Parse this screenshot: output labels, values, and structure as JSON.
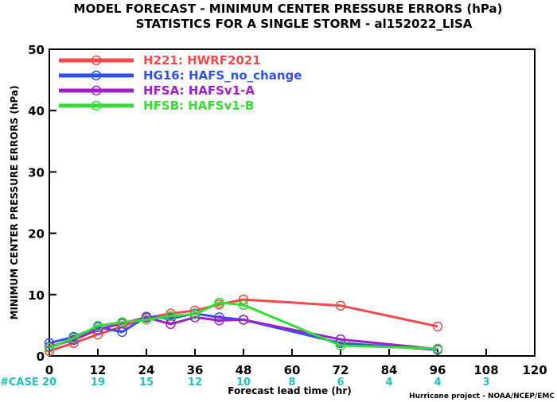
{
  "chart_data": {
    "type": "line",
    "title": "MODEL FORECAST - MINIMUM CENTER PRESSURE ERRORS (hPa)",
    "subtitle": "STATISTICS FOR A SINGLE STORM - al152022_LISA",
    "xlabel": "Forecast lead time (hr)",
    "ylabel": "MINIMUM CENTER PRESSURE ERRORS (hPa)",
    "xlim": [
      0,
      120
    ],
    "ylim": [
      0,
      50
    ],
    "xticks": [
      0,
      12,
      24,
      36,
      48,
      60,
      72,
      84,
      96,
      108,
      120
    ],
    "yticks": [
      0,
      10,
      20,
      30,
      40,
      50
    ],
    "grid": false,
    "legend_position": "top-left",
    "series": [
      {
        "name": "H221: HWRF2021",
        "color": "#f04a4a",
        "x": [
          0,
          6,
          12,
          18,
          24,
          30,
          36,
          42,
          48,
          72,
          96
        ],
        "y": [
          0.8,
          2.1,
          3.5,
          4.8,
          6.2,
          6.9,
          7.4,
          8.4,
          9.2,
          8.2,
          4.8
        ]
      },
      {
        "name": "HG16: HAFS_no_change",
        "color": "#3050f0",
        "x": [
          0,
          6,
          12,
          18,
          24,
          30,
          36,
          42,
          48,
          72,
          96
        ],
        "y": [
          2.1,
          3.1,
          4.7,
          3.9,
          6.4,
          6.1,
          6.9,
          6.3,
          5.9,
          2.1,
          1.0
        ]
      },
      {
        "name": "HFSA: HAFSv1-A",
        "color": "#a020c8",
        "x": [
          0,
          6,
          12,
          18,
          24,
          30,
          36,
          42,
          48,
          72,
          96
        ],
        "y": [
          1.5,
          2.6,
          4.3,
          5.3,
          6.3,
          5.2,
          6.3,
          5.8,
          5.9,
          2.7,
          1.1
        ]
      },
      {
        "name": "HFSB: HAFSv1-B",
        "color": "#30e030",
        "x": [
          0,
          6,
          12,
          18,
          24,
          30,
          36,
          42,
          48,
          72,
          96
        ],
        "y": [
          1.3,
          2.9,
          4.9,
          5.5,
          5.9,
          6.5,
          6.8,
          8.7,
          8.3,
          1.7,
          1.2
        ]
      }
    ],
    "case_label": "#CASE",
    "case_color": "#20c0c0",
    "case_counts": [
      {
        "x": 0,
        "n": "20"
      },
      {
        "x": 12,
        "n": "19"
      },
      {
        "x": 24,
        "n": "15"
      },
      {
        "x": 36,
        "n": "12"
      },
      {
        "x": 48,
        "n": "10"
      },
      {
        "x": 60,
        "n": "8"
      },
      {
        "x": 72,
        "n": "6"
      },
      {
        "x": 84,
        "n": "4"
      },
      {
        "x": 96,
        "n": "4"
      },
      {
        "x": 108,
        "n": "3"
      }
    ],
    "credit": "Hurricane project - NOAA/NCEP/EMC"
  }
}
